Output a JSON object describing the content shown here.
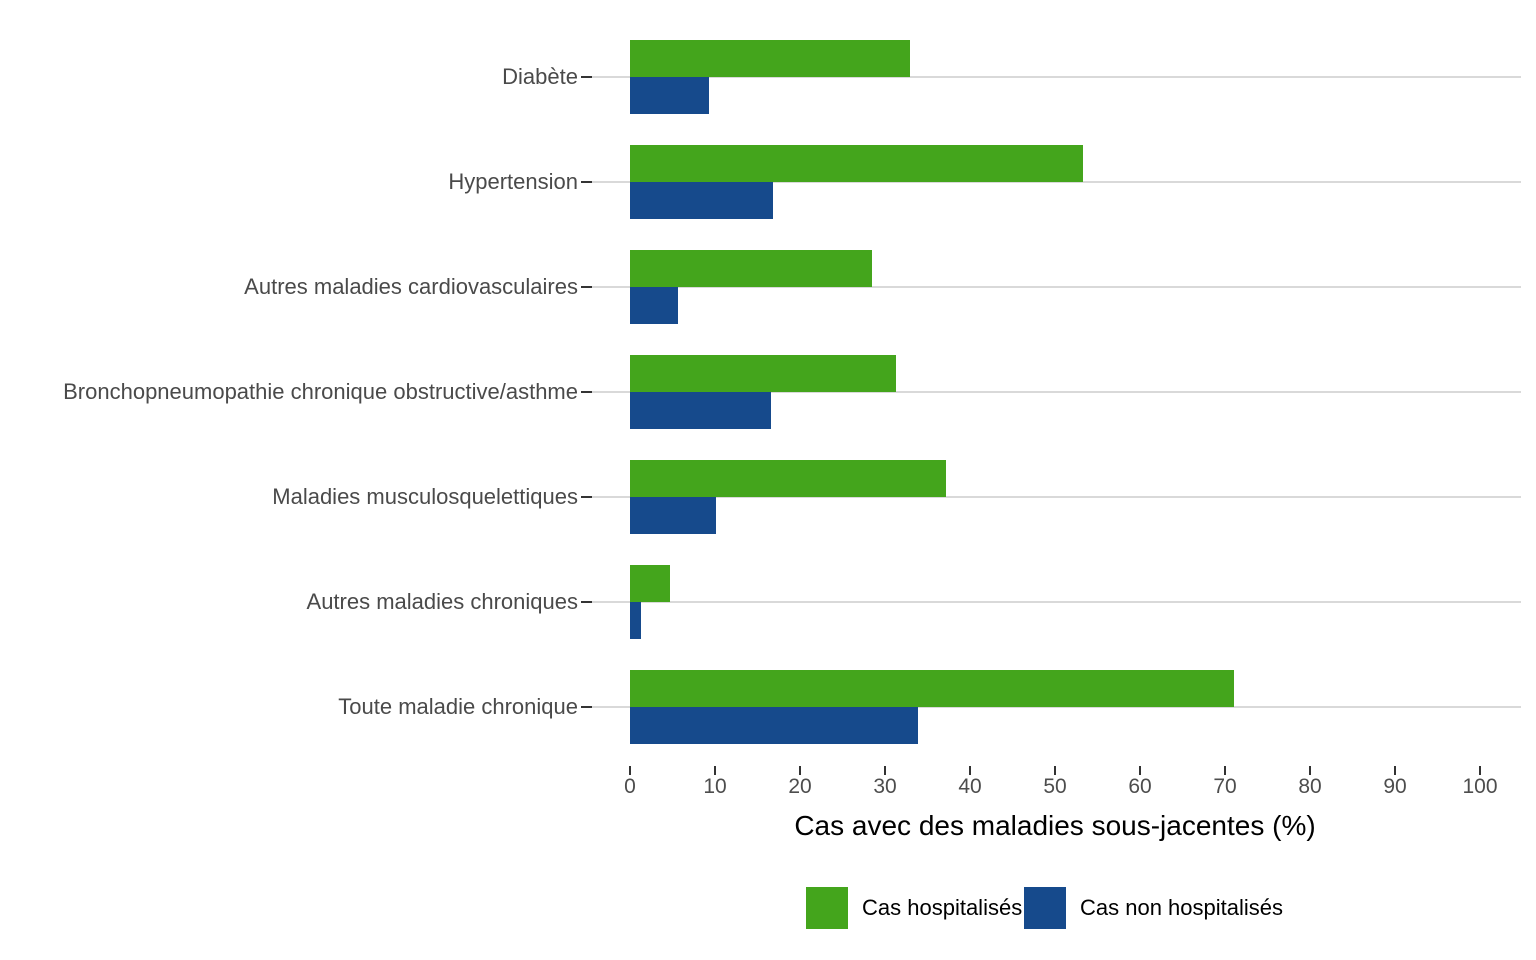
{
  "chart_data": {
    "type": "bar",
    "orientation": "horizontal",
    "title": "",
    "xlabel": "Cas avec des maladies sous-jacentes (%)",
    "ylabel": "",
    "categories": [
      "Diabète",
      "Hypertension",
      "Autres maladies cardiovasculaires",
      "Bronchopneumopathie chronique obstructive/asthme",
      "Maladies musculosquelettiques",
      "Autres maladies chroniques",
      "Toute maladie chronique"
    ],
    "series": [
      {
        "name": "Cas hospitalisés",
        "color": "#44a51c",
        "values": [
          32.9,
          53.3,
          28.5,
          31.3,
          37.2,
          4.7,
          71.1
        ]
      },
      {
        "name": "Cas non hospitalisés",
        "color": "#164a8c",
        "values": [
          9.3,
          16.8,
          5.6,
          16.6,
          10.1,
          1.3,
          33.9
        ]
      }
    ],
    "x_ticks": [
      0,
      10,
      20,
      30,
      40,
      50,
      60,
      70,
      80,
      90,
      100
    ],
    "xlim": [
      0,
      105
    ],
    "grid": "horizontal-category-lines",
    "legend_position": "bottom"
  },
  "legend": {
    "items": [
      {
        "label": "Cas hospitalisés",
        "color": "#44a51c"
      },
      {
        "label": "Cas non hospitalisés",
        "color": "#164a8c"
      }
    ]
  },
  "colors": {
    "gridline": "#d9d9d9",
    "tick": "#333333",
    "category_label": "#4a4a4a",
    "tick_label": "#4d4d4d",
    "axis_title": "#000000",
    "background": "#ffffff"
  }
}
